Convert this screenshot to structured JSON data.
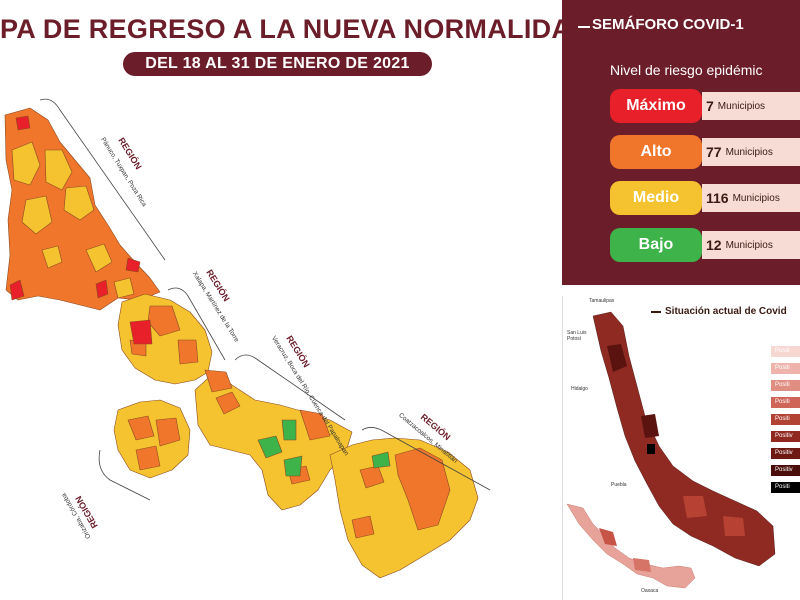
{
  "header": {
    "title": "PA DE REGRESO A LA NUEVA NORMALIDAD",
    "subtitle": "DEL 18 AL 31 DE ENERO DE 2021"
  },
  "regions": [
    {
      "heading": "REGIÓN",
      "names": "Pánuco, Tuxpan, Poza Rica"
    },
    {
      "heading": "REGIÓN",
      "names": "Xalapa, Martínez de la Torre"
    },
    {
      "heading": "REGIÓN",
      "names": "Veracruz, Boca del Río, Cuenca del Papaloapan"
    },
    {
      "heading": "REGIÓN",
      "names": "Coatzacoalcos, Minatitlán"
    },
    {
      "heading": "REGIÓN",
      "names": "Orizaba, Córdoba"
    }
  ],
  "colors": {
    "maximo": "#e8202a",
    "alto": "#f0762b",
    "medio": "#f5c330",
    "bajo": "#3db34a",
    "brand": "#6b1d2a"
  },
  "semaforo": {
    "title": "SEMÁFORO COVID-1",
    "subtitle": "Nivel de riesgo epidémic",
    "levels": [
      {
        "label": "Máximo",
        "count": "7",
        "unit": "Municipios"
      },
      {
        "label": "Alto",
        "count": "77",
        "unit": "Municipios"
      },
      {
        "label": "Medio",
        "count": "116",
        "unit": "Municipios"
      },
      {
        "label": "Bajo",
        "count": "12",
        "unit": "Municipios"
      }
    ]
  },
  "situacion": {
    "title": "Situación actual de Covid",
    "places": [
      "Tamaulipas",
      "San Luis Potosí",
      "Hidalgo",
      "Puebla",
      "Oaxaca"
    ],
    "legend": [
      "Positi",
      "Positi",
      "Positi",
      "Positi",
      "Positi",
      "Positiv",
      "Positiv",
      "Positiv",
      "Positi"
    ]
  }
}
